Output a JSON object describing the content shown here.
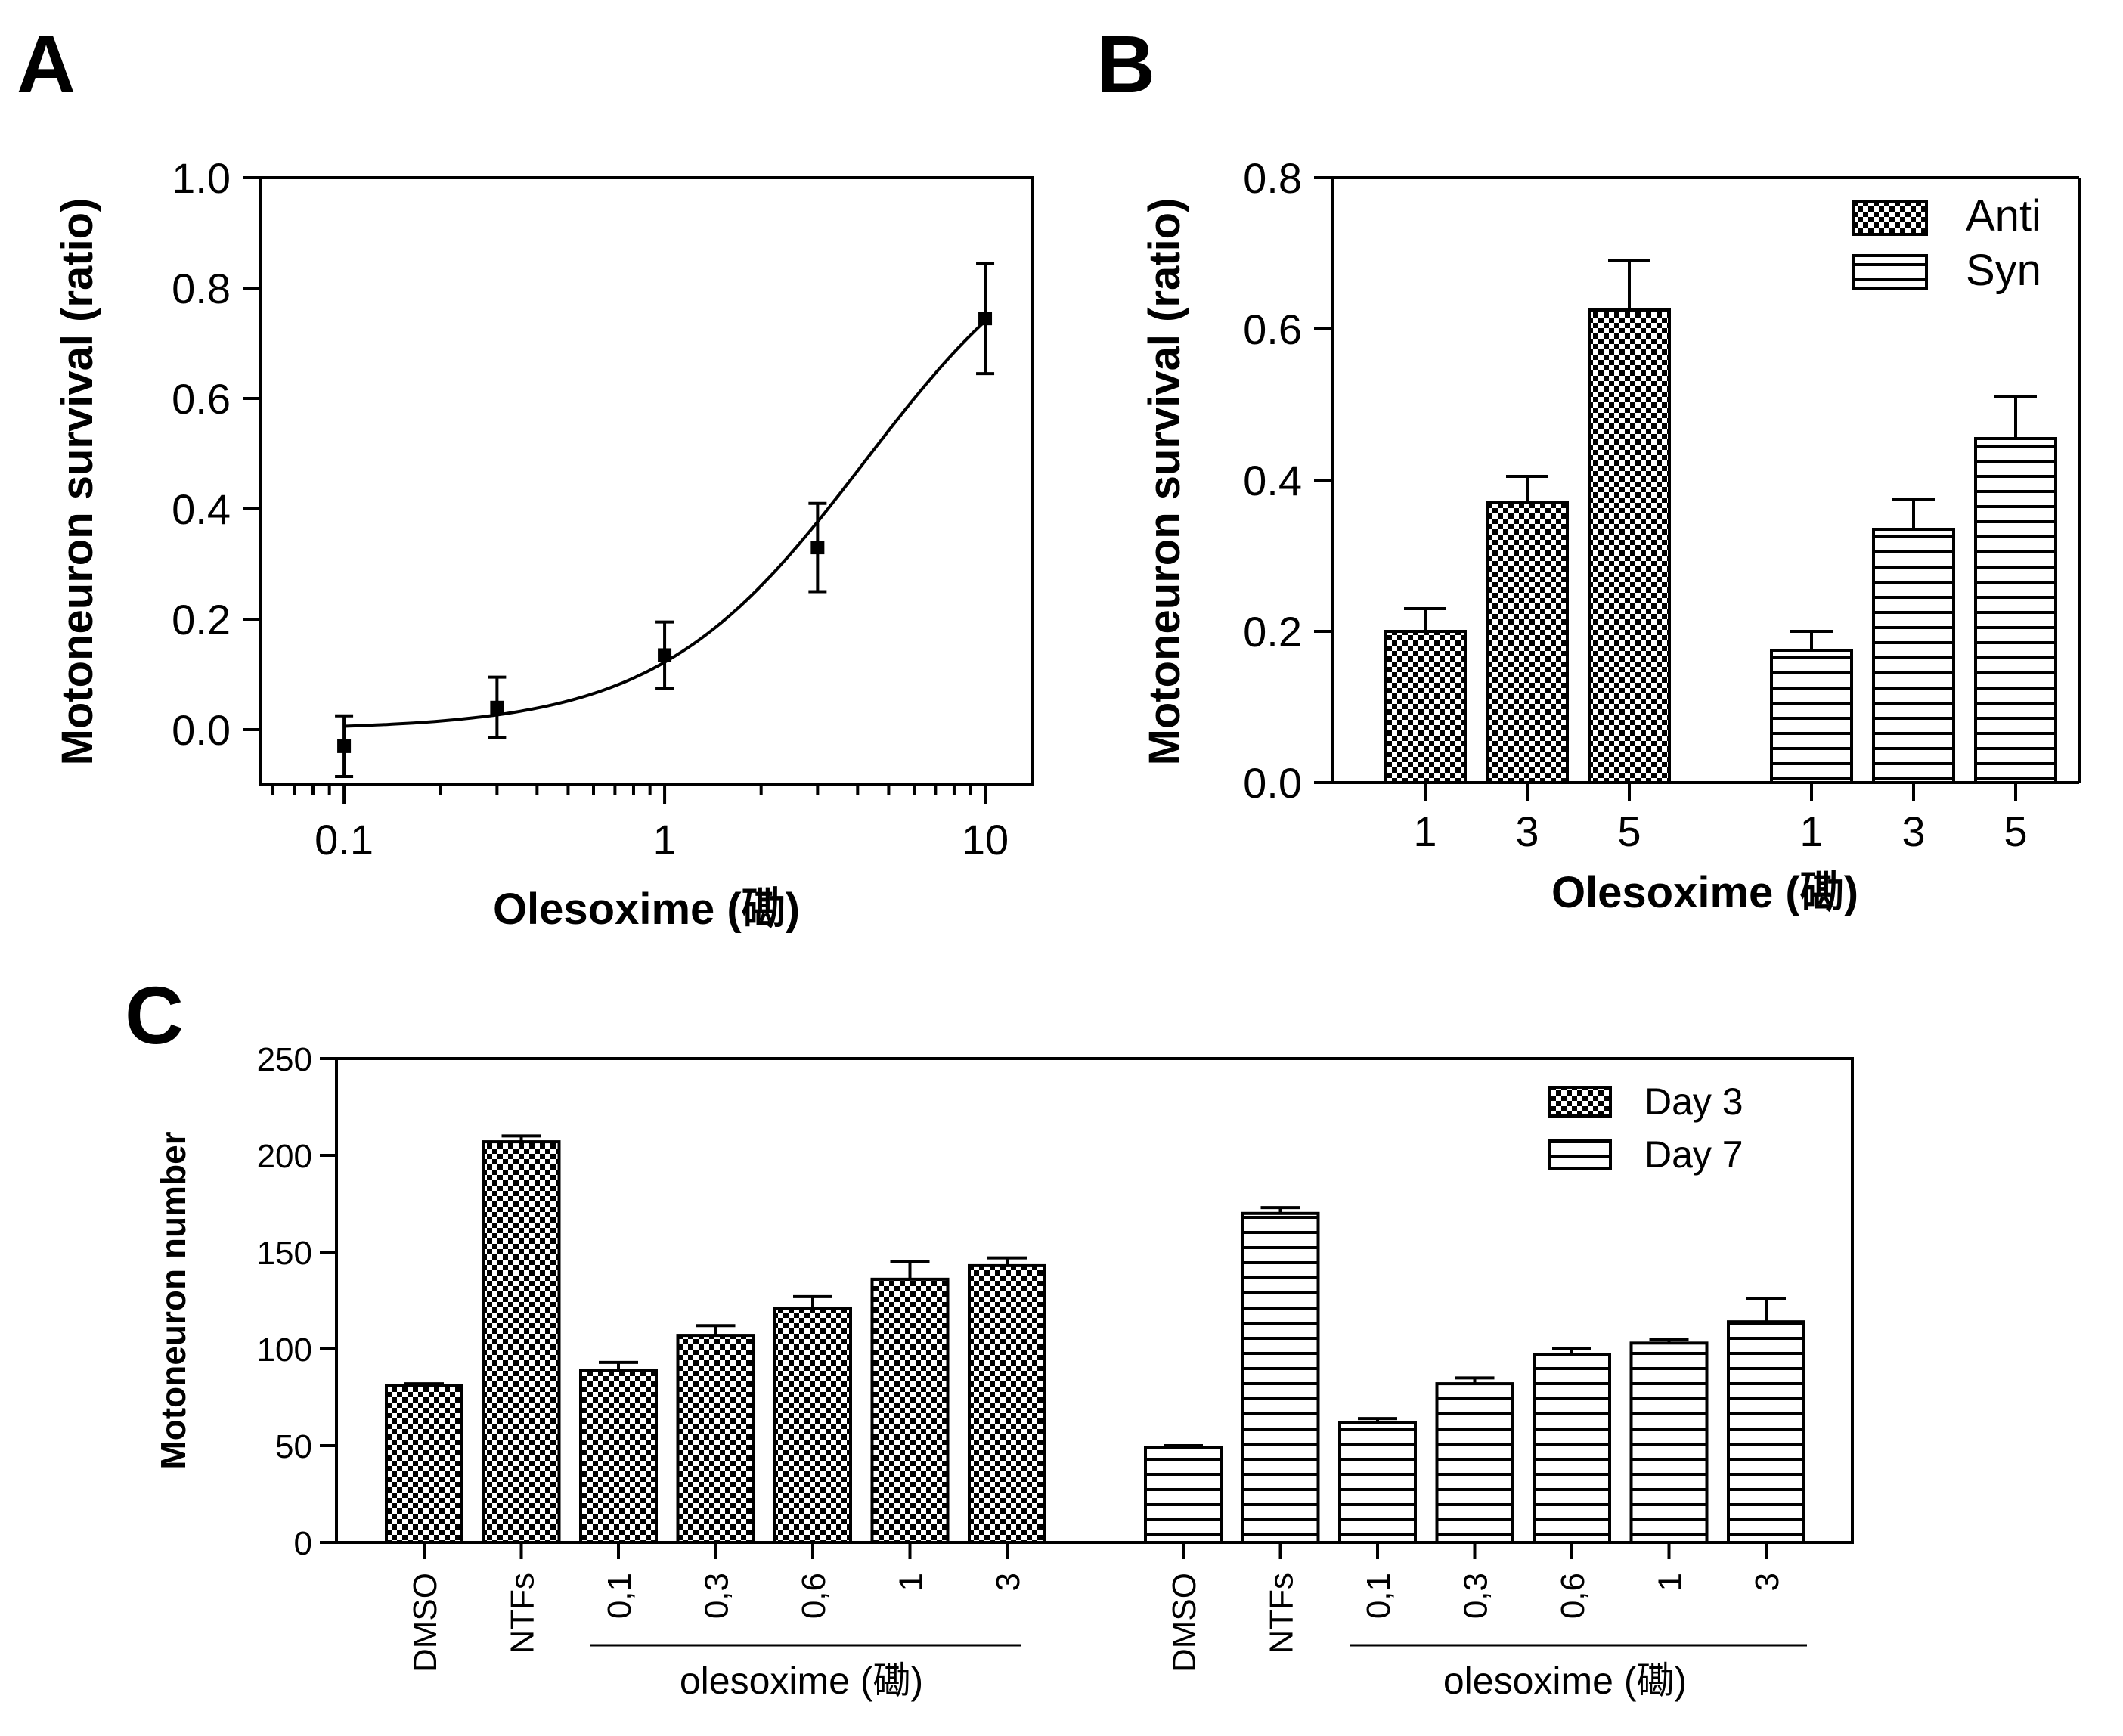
{
  "chart_data": [
    {
      "panel": "A",
      "type": "line",
      "xlabel": "Olesoxime (磡)",
      "ylabel": "Motoneuron survival (ratio)",
      "xscale": "log",
      "xlim": [
        0.055,
        14
      ],
      "ylim": [
        -0.1,
        1.0
      ],
      "yticks": [
        "0.0",
        "0.2",
        "0.4",
        "0.6",
        "0.8",
        "1.0"
      ],
      "xticks": [
        "0.1",
        "1",
        "10"
      ],
      "points": [
        {
          "x": 0.1,
          "y": -0.03,
          "err": 0.055
        },
        {
          "x": 0.3,
          "y": 0.04,
          "err": 0.055
        },
        {
          "x": 1,
          "y": 0.135,
          "err": 0.06
        },
        {
          "x": 3,
          "y": 0.33,
          "err": 0.08
        },
        {
          "x": 10,
          "y": 0.745,
          "err": 0.1
        }
      ],
      "fit_curve": true
    },
    {
      "panel": "B",
      "type": "bar",
      "xlabel": "Olesoxime (磡)",
      "ylabel": "Motoneuron survival (ratio)",
      "ylim": [
        0,
        0.8
      ],
      "yticks": [
        "0.0",
        "0.2",
        "0.4",
        "0.6",
        "0.8"
      ],
      "categories": [
        "1",
        "3",
        "5"
      ],
      "legend_position": "top-right",
      "series": [
        {
          "name": "Anti",
          "pattern": "checker",
          "values": [
            0.2,
            0.37,
            0.625
          ],
          "errors": [
            0.03,
            0.035,
            0.065
          ]
        },
        {
          "name": "Syn",
          "pattern": "hlines",
          "values": [
            0.175,
            0.335,
            0.455
          ],
          "errors": [
            0.025,
            0.04,
            0.055
          ]
        }
      ]
    },
    {
      "panel": "C",
      "type": "bar",
      "ylabel": "Motoneuron number",
      "ylim": [
        0,
        250
      ],
      "yticks": [
        "0",
        "50",
        "100",
        "150",
        "200",
        "250"
      ],
      "categories": [
        "DMSO",
        "NTFs",
        "0,1",
        "0,3",
        "0,6",
        "1",
        "3"
      ],
      "group_label": "olesoxime (磡)",
      "legend_position": "top-right",
      "series": [
        {
          "name": "Day 3",
          "pattern": "checker",
          "values": [
            81,
            207,
            89,
            107,
            121,
            136,
            143
          ],
          "errors": [
            1,
            3,
            4,
            5,
            6,
            9,
            4
          ]
        },
        {
          "name": "Day 7",
          "pattern": "hlines",
          "values": [
            49,
            170,
            62,
            82,
            97,
            103,
            114
          ],
          "errors": [
            1,
            3,
            2,
            3,
            3,
            2,
            12
          ]
        }
      ]
    }
  ]
}
